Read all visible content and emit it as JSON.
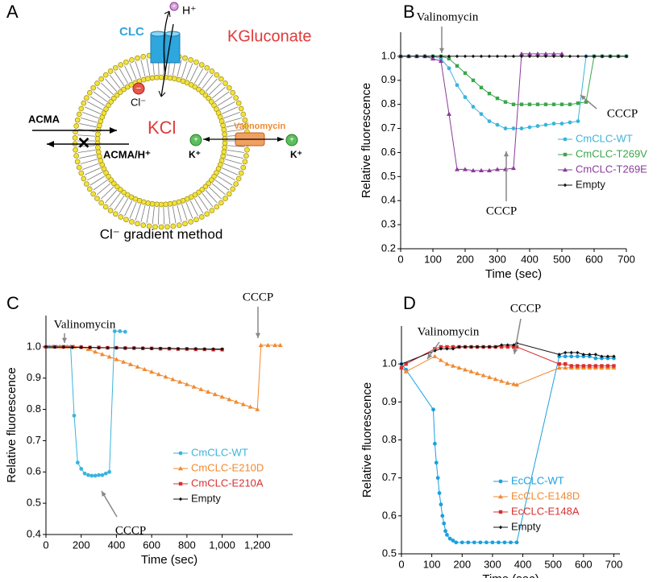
{
  "diagram": {
    "panel": "A",
    "labels": {
      "clc": "CLC",
      "proton": "H⁺",
      "outside": "KGluconate",
      "chloride": "Cl⁻",
      "inside": "KCl",
      "acma": "ACMA",
      "acma_h": "ACMA/H⁺",
      "valinomycin": "Valinomycin",
      "k_in": "K⁺",
      "k_out": "K⁺"
    },
    "caption": "Cl⁻ gradient method"
  },
  "chart_data": [
    {
      "type": "line",
      "panel": "B",
      "xlabel": "Time (sec)",
      "ylabel": "Relative fluorescence",
      "xlim": [
        0,
        700
      ],
      "ylim": [
        0.2,
        1.1
      ],
      "xticks": [
        0,
        100,
        200,
        300,
        400,
        500,
        600,
        700
      ],
      "yticks": [
        0.2,
        0.3,
        0.4,
        0.5,
        0.6,
        0.7,
        0.8,
        0.9,
        {
          "value": 1,
          "label": "1.0"
        }
      ],
      "annotations": [
        "Valinomycin",
        "CCCP",
        "CCCP"
      ],
      "series": [
        {
          "name": "CmCLC-WT",
          "color": "#3ab4dc",
          "marker": "circle",
          "x": [
            0,
            25,
            50,
            75,
            100,
            125,
            150,
            175,
            200,
            225,
            250,
            275,
            300,
            325,
            350,
            375,
            400,
            425,
            450,
            475,
            500,
            525,
            550,
            575,
            600,
            625,
            650,
            675,
            700
          ],
          "values": [
            1,
            1,
            1,
            1,
            1,
            0.99,
            0.95,
            0.88,
            0.83,
            0.79,
            0.76,
            0.73,
            0.715,
            0.7,
            0.7,
            0.7,
            0.705,
            0.71,
            0.715,
            0.72,
            0.72,
            0.725,
            0.73,
            1,
            1,
            1,
            1,
            1,
            1
          ]
        },
        {
          "name": "CmCLC-T269V",
          "color": "#3aa64a",
          "marker": "square",
          "x": [
            0,
            25,
            50,
            75,
            100,
            125,
            150,
            175,
            200,
            225,
            250,
            275,
            300,
            325,
            350,
            375,
            400,
            425,
            450,
            475,
            500,
            525,
            550,
            575,
            600,
            625,
            650,
            675,
            700
          ],
          "values": [
            1,
            1,
            1,
            1,
            1,
            1,
            0.99,
            0.96,
            0.93,
            0.9,
            0.87,
            0.845,
            0.825,
            0.81,
            0.8,
            0.8,
            0.8,
            0.8,
            0.8,
            0.8,
            0.8,
            0.8,
            0.805,
            0.81,
            1,
            1,
            1,
            1,
            1
          ]
        },
        {
          "name": "CmCLC-T269E",
          "color": "#8a3a9a",
          "marker": "triangle",
          "x": [
            0,
            25,
            50,
            75,
            100,
            125,
            150,
            175,
            200,
            225,
            250,
            275,
            300,
            325,
            350,
            375,
            400,
            425,
            450,
            475,
            500
          ],
          "values": [
            1,
            1,
            1,
            1,
            0.99,
            0.98,
            0.76,
            0.53,
            0.53,
            0.525,
            0.525,
            0.525,
            0.53,
            0.53,
            0.535,
            1.01,
            1.01,
            1.01,
            1.01,
            1.01,
            1.01
          ]
        },
        {
          "name": "Empty",
          "color": "#111111",
          "marker": "diamond",
          "x": [
            0,
            25,
            50,
            75,
            100,
            125,
            150,
            175,
            200,
            225,
            250,
            275,
            300,
            325,
            350,
            375,
            400,
            425,
            450,
            475,
            500,
            525,
            550,
            575,
            600,
            625,
            650,
            675,
            700
          ],
          "values": [
            1,
            1,
            1,
            1,
            1,
            1,
            1,
            1,
            1,
            1,
            1,
            1,
            1,
            1,
            1,
            1,
            1,
            1,
            1,
            1,
            1,
            1,
            1,
            1,
            1,
            1,
            1,
            1,
            1
          ]
        }
      ]
    },
    {
      "type": "line",
      "panel": "C",
      "xlabel": "Time (sec)",
      "ylabel": "Relative fluorescence",
      "xlim": [
        0,
        1400
      ],
      "ylim": [
        0.4,
        1.1
      ],
      "xticks": [
        0,
        200,
        400,
        600,
        800,
        {
          "value": 1000,
          "label": "1,000"
        },
        {
          "value": 1200,
          "label": "1,200"
        }
      ],
      "yticks": [
        0.4,
        0.5,
        0.6,
        0.7,
        0.8,
        0.9,
        {
          "value": 1,
          "label": "1.0"
        }
      ],
      "annotations": [
        "Valinomycin",
        "CCCP",
        "CCCP"
      ],
      "series": [
        {
          "name": "CmCLC-WT",
          "color": "#3ab4dc",
          "marker": "circle",
          "x": [
            0,
            20,
            40,
            60,
            80,
            100,
            120,
            140,
            160,
            180,
            200,
            220,
            240,
            260,
            280,
            300,
            320,
            340,
            360,
            390,
            420,
            450
          ],
          "values": [
            1,
            1,
            1,
            1,
            1,
            1,
            1,
            1,
            0.78,
            0.63,
            0.61,
            0.595,
            0.59,
            0.588,
            0.588,
            0.59,
            0.59,
            0.595,
            0.6,
            1.05,
            1.05,
            1.048
          ]
        },
        {
          "name": "CmCLC-E210D",
          "color": "#f08a30",
          "marker": "triangle",
          "x": [
            0,
            40,
            80,
            120,
            160,
            200,
            240,
            280,
            320,
            360,
            400,
            440,
            480,
            520,
            560,
            600,
            640,
            680,
            720,
            760,
            800,
            840,
            880,
            920,
            960,
            1000,
            1040,
            1080,
            1120,
            1160,
            1200,
            1220,
            1260,
            1300,
            1330
          ],
          "values": [
            1,
            1,
            1,
            1,
            1,
            1,
            0.992,
            0.984,
            0.976,
            0.968,
            0.96,
            0.952,
            0.944,
            0.936,
            0.928,
            0.92,
            0.912,
            0.904,
            0.896,
            0.888,
            0.88,
            0.872,
            0.864,
            0.856,
            0.848,
            0.84,
            0.832,
            0.824,
            0.816,
            0.808,
            0.8,
            1.005,
            1.005,
            1.005,
            1.005
          ]
        },
        {
          "name": "CmCLC-E210A",
          "color": "#d83030",
          "marker": "square",
          "x": [
            0,
            50,
            100,
            150,
            200,
            250,
            300,
            350,
            400,
            450,
            500,
            550,
            600,
            650,
            700,
            750,
            800,
            850,
            900,
            950,
            1000
          ],
          "values": [
            1,
            1,
            1,
            1,
            0.999,
            0.998,
            0.998,
            0.997,
            0.997,
            0.996,
            0.996,
            0.995,
            0.995,
            0.994,
            0.994,
            0.993,
            0.993,
            0.992,
            0.992,
            0.991,
            0.991
          ]
        },
        {
          "name": "Empty",
          "color": "#111111",
          "marker": "diamond",
          "x": [
            0,
            50,
            100,
            150,
            200,
            250,
            300,
            350,
            400,
            450,
            500,
            550,
            600,
            650,
            700,
            750,
            800,
            850,
            900,
            950,
            1000
          ],
          "values": [
            1,
            0.999,
            0.999,
            0.998,
            0.998,
            0.998,
            0.997,
            0.997,
            0.997,
            0.996,
            0.996,
            0.996,
            0.995,
            0.995,
            0.995,
            0.994,
            0.994,
            0.994,
            0.993,
            0.993,
            0.993
          ]
        }
      ]
    },
    {
      "type": "line",
      "panel": "D",
      "xlabel": "Time (sec)",
      "ylabel": "Relative fluorescence",
      "xlim": [
        0,
        720
      ],
      "ylim": [
        0.5,
        1.1
      ],
      "xticks": [
        0,
        100,
        200,
        300,
        400,
        500,
        600,
        700
      ],
      "yticks": [
        0.5,
        0.6,
        0.7,
        0.8,
        0.9,
        {
          "value": 1,
          "label": "1.0"
        }
      ],
      "annotations": [
        "Valinomycin",
        "CCCP"
      ],
      "series": [
        {
          "name": "EcCLC-WT",
          "color": "#1aa0e0",
          "marker": "circle",
          "x": [
            0,
            15,
            105,
            110,
            115,
            120,
            125,
            130,
            135,
            140,
            145,
            150,
            160,
            170,
            180,
            200,
            220,
            240,
            260,
            280,
            300,
            320,
            340,
            360,
            380,
            520,
            540,
            560,
            580,
            600,
            620,
            640,
            660,
            680,
            700
          ],
          "values": [
            1,
            0.985,
            0.88,
            0.79,
            0.74,
            0.7,
            0.66,
            0.63,
            0.6,
            0.58,
            0.56,
            0.55,
            0.54,
            0.535,
            0.53,
            0.53,
            0.53,
            0.53,
            0.53,
            0.53,
            0.53,
            0.53,
            0.53,
            0.53,
            0.53,
            1.02,
            1.02,
            1.02,
            1.02,
            1.02,
            1.02,
            1.015,
            1.015,
            1.015,
            1.015
          ]
        },
        {
          "name": "EcCLC-E148D",
          "color": "#f08a30",
          "marker": "triangle",
          "x": [
            0,
            15,
            110,
            130,
            150,
            170,
            190,
            210,
            230,
            250,
            270,
            290,
            310,
            330,
            350,
            370,
            380,
            520,
            540,
            560,
            580,
            600,
            620,
            640,
            660,
            680,
            700
          ],
          "values": [
            0.99,
            0.98,
            1.02,
            1.01,
            1,
            0.995,
            0.99,
            0.985,
            0.98,
            0.975,
            0.97,
            0.965,
            0.96,
            0.955,
            0.95,
            0.947,
            0.945,
            0.99,
            0.99,
            0.99,
            0.99,
            0.99,
            0.99,
            0.99,
            0.99,
            0.99,
            0.99
          ]
        },
        {
          "name": "EcCLC-E148A",
          "color": "#d83030",
          "marker": "square",
          "x": [
            0,
            15,
            110,
            130,
            150,
            170,
            190,
            210,
            230,
            250,
            270,
            290,
            310,
            330,
            350,
            370,
            380,
            520,
            540,
            560,
            580,
            600,
            620,
            640,
            660,
            680,
            700
          ],
          "values": [
            0.99,
            1,
            1.04,
            1.045,
            1.045,
            1.045,
            1.045,
            1.045,
            1.045,
            1.045,
            1.045,
            1.045,
            1.045,
            1.045,
            1.045,
            1.045,
            1.045,
            1,
            1,
            0.995,
            0.995,
            0.995,
            0.995,
            0.995,
            0.995,
            0.995,
            0.995
          ]
        },
        {
          "name": "Empty",
          "color": "#111111",
          "marker": "diamond",
          "x": [
            0,
            110,
            130,
            150,
            170,
            190,
            210,
            230,
            250,
            270,
            290,
            310,
            330,
            350,
            370,
            380,
            520,
            540,
            560,
            580,
            600,
            620,
            640,
            660,
            680,
            700
          ],
          "values": [
            1,
            1.035,
            1.04,
            1.04,
            1.04,
            1.045,
            1.045,
            1.045,
            1.045,
            1.045,
            1.045,
            1.045,
            1.05,
            1.05,
            1.05,
            1.055,
            1.025,
            1.03,
            1.03,
            1.03,
            1.025,
            1.025,
            1.025,
            1.02,
            1.02,
            1.02
          ]
        }
      ]
    }
  ]
}
